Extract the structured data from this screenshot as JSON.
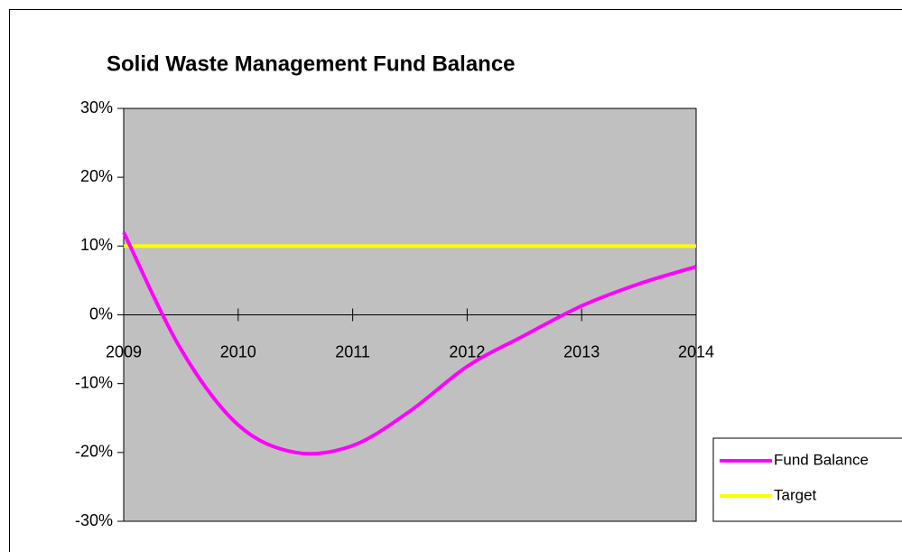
{
  "chart_data": {
    "type": "line",
    "title": "Solid Waste Management Fund Balance",
    "x": [
      2009,
      2009.5,
      2010,
      2010.5,
      2011,
      2011.5,
      2012,
      2012.5,
      2013,
      2013.5,
      2014
    ],
    "series": [
      {
        "name": "Fund Balance",
        "color": "#ff00ff",
        "values": [
          12,
          -5,
          -16,
          -20,
          -19,
          -14,
          -7.5,
          -3,
          1.3,
          4.5,
          7
        ]
      },
      {
        "name": "Target",
        "color": "#ffff00",
        "values": [
          10,
          10,
          10,
          10,
          10,
          10,
          10,
          10,
          10,
          10,
          10
        ]
      }
    ],
    "xlim": [
      2009,
      2014
    ],
    "xticks": [
      2009,
      2010,
      2011,
      2012,
      2013,
      2014
    ],
    "ylim": [
      -30,
      30
    ],
    "yticks": [
      {
        "value": -30,
        "label": "-30%"
      },
      {
        "value": -20,
        "label": "-20%"
      },
      {
        "value": -10,
        "label": "-10%"
      },
      {
        "value": 0,
        "label": "0%"
      },
      {
        "value": 10,
        "label": "10%"
      },
      {
        "value": 20,
        "label": "20%"
      },
      {
        "value": 30,
        "label": "30%"
      }
    ],
    "plot_background": "#c0c0c0",
    "smooth": true,
    "legend": "bottom-right"
  }
}
